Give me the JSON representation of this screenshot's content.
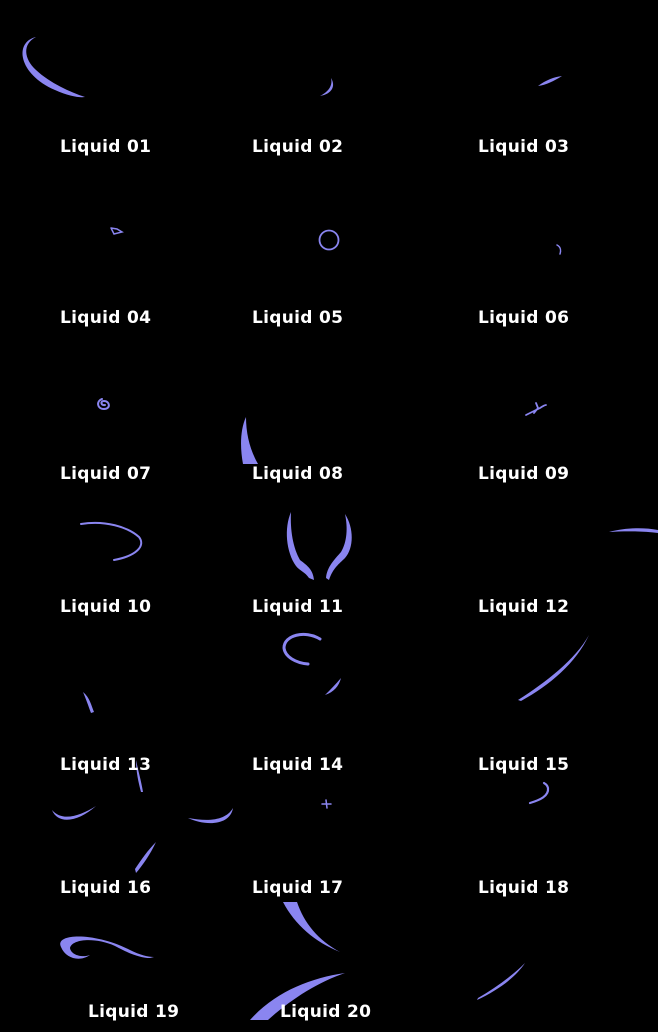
{
  "background": "#000000",
  "accent": "#8a85f0",
  "labels": [
    "Liquid 01",
    "Liquid 02",
    "Liquid 03",
    "Liquid 04",
    "Liquid 05",
    "Liquid 06",
    "Liquid 07",
    "Liquid 08",
    "Liquid 09",
    "Liquid 10",
    "Liquid 11",
    "Liquid 12",
    "Liquid 13",
    "Liquid 14",
    "Liquid 15",
    "Liquid 16",
    "Liquid 17",
    "Liquid 18",
    "Liquid 19",
    "Liquid 20"
  ]
}
